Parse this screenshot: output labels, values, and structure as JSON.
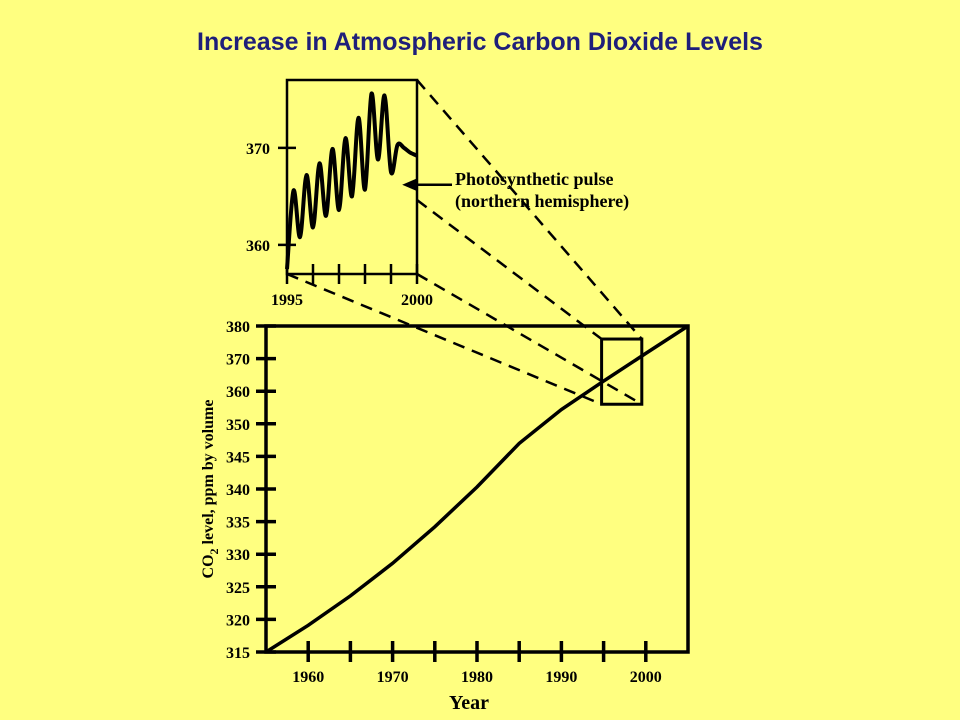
{
  "title": "Increase in Atmospheric Carbon Dioxide Levels",
  "colors": {
    "background": "#FFFF80",
    "title": "#1F1F7A",
    "ink": "#000000"
  },
  "chart_data": [
    {
      "type": "line",
      "name": "main",
      "xlabel": "Year",
      "ylabel_parts": [
        "CO",
        "2",
        " level, ppm by volume"
      ],
      "xlim": [
        1955,
        2005
      ],
      "ylim": [
        315,
        380
      ],
      "x_ticks": [
        1960,
        1970,
        1980,
        1990,
        2000
      ],
      "x_minor_ticks": [
        1965,
        1975,
        1985,
        1995
      ],
      "y_ticks": [
        315,
        320,
        325,
        330,
        335,
        340,
        345,
        350,
        360,
        370,
        380
      ],
      "series": [
        {
          "x": [
            1955,
            1960,
            1965,
            1970,
            1975,
            1980,
            1985,
            1990,
            1995,
            2000,
            2005
          ],
          "y": [
            315.0,
            319.1,
            323.6,
            328.6,
            334.2,
            340.3,
            347.0,
            354.4,
            363.1,
            371.6,
            380.0
          ]
        }
      ],
      "zoom_box": {
        "x": [
          1995,
          2000
        ],
        "y": [
          356,
          376
        ]
      }
    },
    {
      "type": "line",
      "name": "inset",
      "xlim": [
        1995,
        2000
      ],
      "ylim": [
        357,
        377
      ],
      "x_tick_labels": [
        "1995",
        "2000"
      ],
      "x_ticks": [
        1995,
        1996,
        1997,
        1998,
        1999,
        2000
      ],
      "y_ticks": [
        360,
        370
      ],
      "series": [
        {
          "x": [
            1995,
            1995.25,
            1995.5,
            1995.75,
            1996,
            1996.25,
            1996.5,
            1996.75,
            1997,
            1997.25,
            1997.5,
            1997.75,
            1998,
            1998.25,
            1998.5,
            1998.75,
            1999,
            1999.25,
            1999.5,
            1999.75,
            2000
          ],
          "y": [
            357.5,
            365.6,
            360.8,
            367.2,
            361.8,
            368.4,
            363.0,
            369.9,
            363.6,
            371.0,
            365.0,
            373.1,
            365.7,
            375.6,
            368.8,
            375.4,
            367.5,
            370.3,
            370.0,
            369.5,
            369.2
          ]
        }
      ],
      "annotation": {
        "lines": [
          "Photosynthetic pulse",
          "(northern hemisphere)"
        ],
        "x": 1999.2,
        "y": 366
      }
    }
  ]
}
